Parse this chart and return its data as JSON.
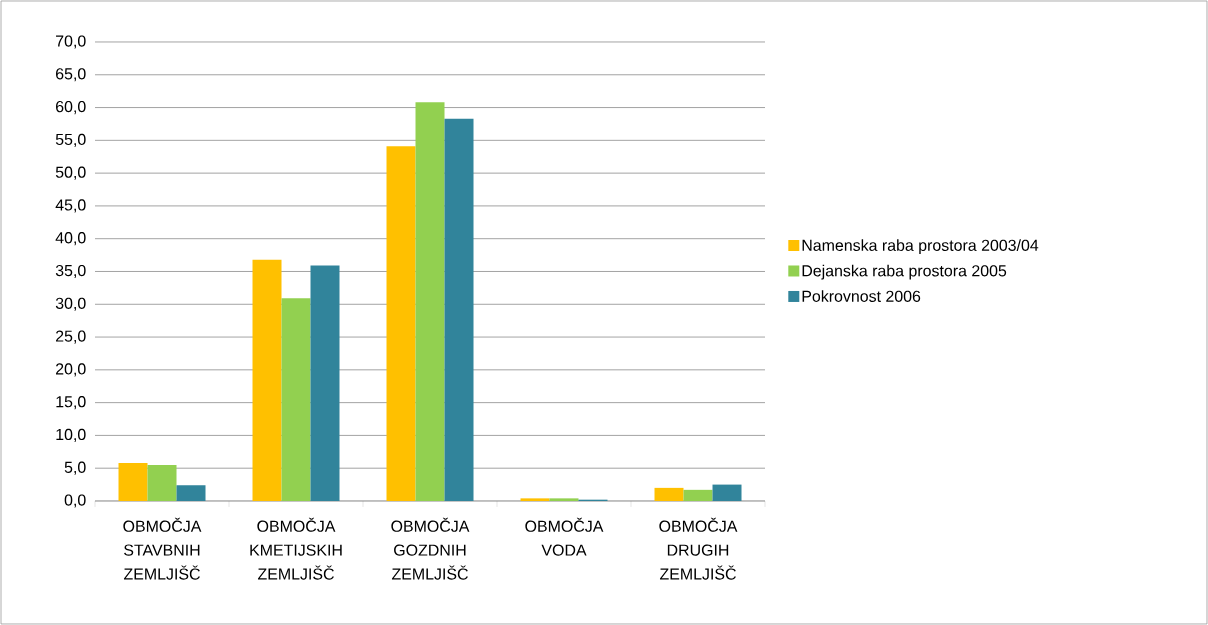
{
  "chart_data": {
    "type": "bar",
    "categories": [
      "OBMOČJA STAVBNIH ZEMLJIŠČ",
      "OBMOČJA KMETIJSKIH ZEMLJIŠČ",
      "OBMOČJA GOZDNIH ZEMLJIŠČ",
      "OBMOČJA VODA",
      "OBMOČJA DRUGIH ZEMLJIŠČ"
    ],
    "series": [
      {
        "name": "Namenska raba prostora 2003/04",
        "color": "#ffc000",
        "values": [
          5.8,
          36.8,
          54.1,
          0.4,
          2.0
        ]
      },
      {
        "name": "Dejanska raba prostora 2005",
        "color": "#92d050",
        "values": [
          5.5,
          30.9,
          60.8,
          0.4,
          1.7
        ]
      },
      {
        "name": "Pokrovnost 2006",
        "color": "#31849b",
        "values": [
          2.4,
          35.9,
          58.3,
          0.2,
          2.5
        ]
      }
    ],
    "ylim": [
      0,
      70
    ],
    "yticks": [
      {
        "value": 0,
        "label": "0,0"
      },
      {
        "value": 5,
        "label": "5,0"
      },
      {
        "value": 10,
        "label": "10,0"
      },
      {
        "value": 15,
        "label": "15,0"
      },
      {
        "value": 20,
        "label": "20,0"
      },
      {
        "value": 25,
        "label": "25,0"
      },
      {
        "value": 30,
        "label": "30,0"
      },
      {
        "value": 35,
        "label": "35,0"
      },
      {
        "value": 40,
        "label": "40,0"
      },
      {
        "value": 45,
        "label": "45,0"
      },
      {
        "value": 50,
        "label": "50,0"
      },
      {
        "value": 55,
        "label": "55,0"
      },
      {
        "value": 60,
        "label": "60,0"
      },
      {
        "value": 65,
        "label": "65,0"
      },
      {
        "value": 70,
        "label": "70,0"
      }
    ],
    "grid": "y",
    "legend": "right"
  }
}
